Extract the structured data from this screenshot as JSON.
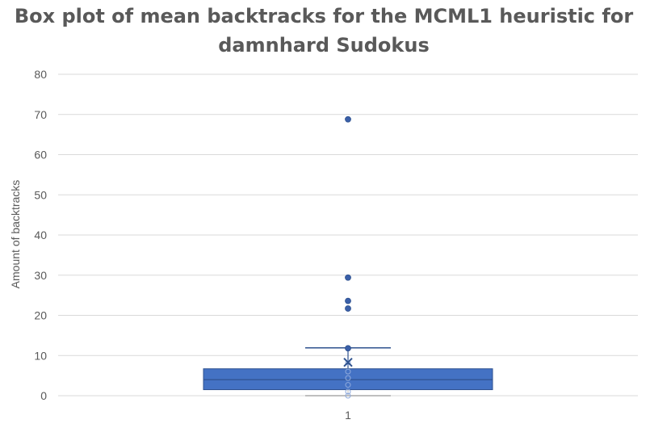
{
  "chart_data": {
    "type": "box",
    "title_lines": [
      "Box plot of mean backtracks for the MCML1 heuristic for",
      "damnhard Sudokus"
    ],
    "xlabel": "",
    "ylabel": "Amount of backtracks",
    "categories": [
      "1"
    ],
    "ylim": [
      0,
      80
    ],
    "yticks": [
      0,
      10,
      20,
      30,
      40,
      50,
      60,
      70,
      80
    ],
    "grid": true,
    "legend": "none",
    "box": {
      "category": "1",
      "min": 0,
      "q1": 1.5,
      "median": 4,
      "q3": 6.7,
      "max": 11.9,
      "mean": 8.3
    },
    "inner_points": [
      0,
      1,
      2.7,
      4.4,
      6,
      8.2,
      11.8
    ],
    "outliers": [
      21.7,
      23.6,
      29.4,
      68.8
    ],
    "colors": {
      "box_fill": "#4472c4",
      "box_stroke": "#2f528f",
      "point": "#3a5fa8",
      "grid": "#d9d9d9",
      "text": "#595959"
    }
  }
}
